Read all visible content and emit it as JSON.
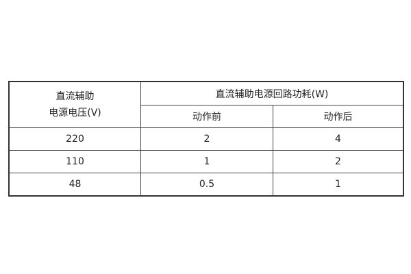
{
  "table": {
    "header": {
      "voltage_line1": "直流辅助",
      "voltage_line2": "电源电压(V)",
      "power_group": "直流辅助电源回路功耗(W)",
      "before": "动作前",
      "after": "动作后"
    },
    "rows": [
      [
        "220",
        "2",
        "4"
      ],
      [
        "110",
        "1",
        "2"
      ],
      [
        "48",
        "0.5",
        "1"
      ]
    ]
  }
}
